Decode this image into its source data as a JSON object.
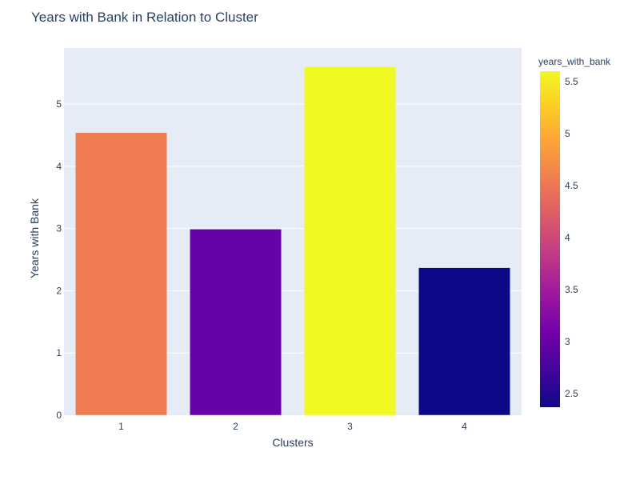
{
  "chart_data": {
    "type": "bar",
    "title": "Years with Bank in Relation to Cluster",
    "xlabel": "Clusters",
    "ylabel": "Years with Bank",
    "categories": [
      "1",
      "2",
      "3",
      "4"
    ],
    "values": [
      4.54,
      2.99,
      5.6,
      2.37
    ],
    "ylim": [
      0,
      5.9
    ],
    "yticks": [
      0,
      1,
      2,
      3,
      4,
      5
    ],
    "grid": true,
    "colorbar": {
      "title": "years_with_bank",
      "colorscale": "plasma",
      "range": [
        2.37,
        5.6
      ],
      "ticks": [
        2.5,
        3,
        3.5,
        4,
        4.5,
        5,
        5.5
      ],
      "colors": [
        "#0d0887",
        "#46039f",
        "#7201a8",
        "#9c179e",
        "#bd3786",
        "#d8576b",
        "#ed7953",
        "#fb9f3a",
        "#fdca26",
        "#f0f921"
      ]
    },
    "plot_background": "#e5ecf6"
  }
}
